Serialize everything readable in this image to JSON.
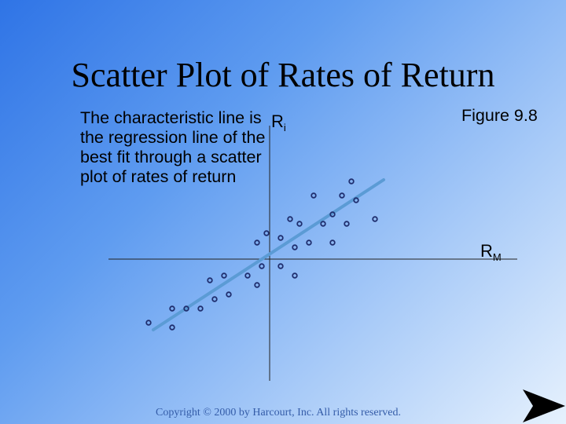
{
  "slide": {
    "title": "Scatter Plot of Rates of Return",
    "description": "The characteristic line is the regression line of the best fit through a scatter plot of rates of return",
    "figure_label": "Figure 9.8",
    "copyright": "Copyright © 2000 by Harcourt, Inc.  All rights reserved."
  },
  "chart_data": {
    "type": "scatter",
    "title": "",
    "xlabel": {
      "main": "R",
      "sub": "M"
    },
    "ylabel": {
      "main": "R",
      "sub": "i"
    },
    "xlim": [
      -205,
      315
    ],
    "ylim": [
      -155,
      170
    ],
    "grid": false,
    "axes_cross_at_origin": true,
    "points": [
      {
        "x": -154,
        "y": -81
      },
      {
        "x": -124,
        "y": -63
      },
      {
        "x": -124,
        "y": -87
      },
      {
        "x": -106,
        "y": -63
      },
      {
        "x": -88,
        "y": -63
      },
      {
        "x": -76,
        "y": -27
      },
      {
        "x": -70,
        "y": -51
      },
      {
        "x": -58,
        "y": -21
      },
      {
        "x": -52,
        "y": -45
      },
      {
        "x": -28,
        "y": -21
      },
      {
        "x": -16,
        "y": -33
      },
      {
        "x": -16,
        "y": 21
      },
      {
        "x": -10,
        "y": -9
      },
      {
        "x": -4,
        "y": 33
      },
      {
        "x": 14,
        "y": -9
      },
      {
        "x": 14,
        "y": 27
      },
      {
        "x": 26,
        "y": 51
      },
      {
        "x": 32,
        "y": 15
      },
      {
        "x": 32,
        "y": -21
      },
      {
        "x": 38,
        "y": 45
      },
      {
        "x": 50,
        "y": 21
      },
      {
        "x": 56,
        "y": 81
      },
      {
        "x": 68,
        "y": 45
      },
      {
        "x": 80,
        "y": 57
      },
      {
        "x": 80,
        "y": 21
      },
      {
        "x": 92,
        "y": 81
      },
      {
        "x": 98,
        "y": 45
      },
      {
        "x": 104,
        "y": 99
      },
      {
        "x": 110,
        "y": 75
      },
      {
        "x": 134,
        "y": 51
      }
    ],
    "regression_line": {
      "x": [
        -148,
        145
      ],
      "y": -90,
      "y_end": 101
    },
    "colors": {
      "points": "#1f2e6e",
      "regression_line": "#5b9bd5",
      "axes": "#222222"
    }
  }
}
